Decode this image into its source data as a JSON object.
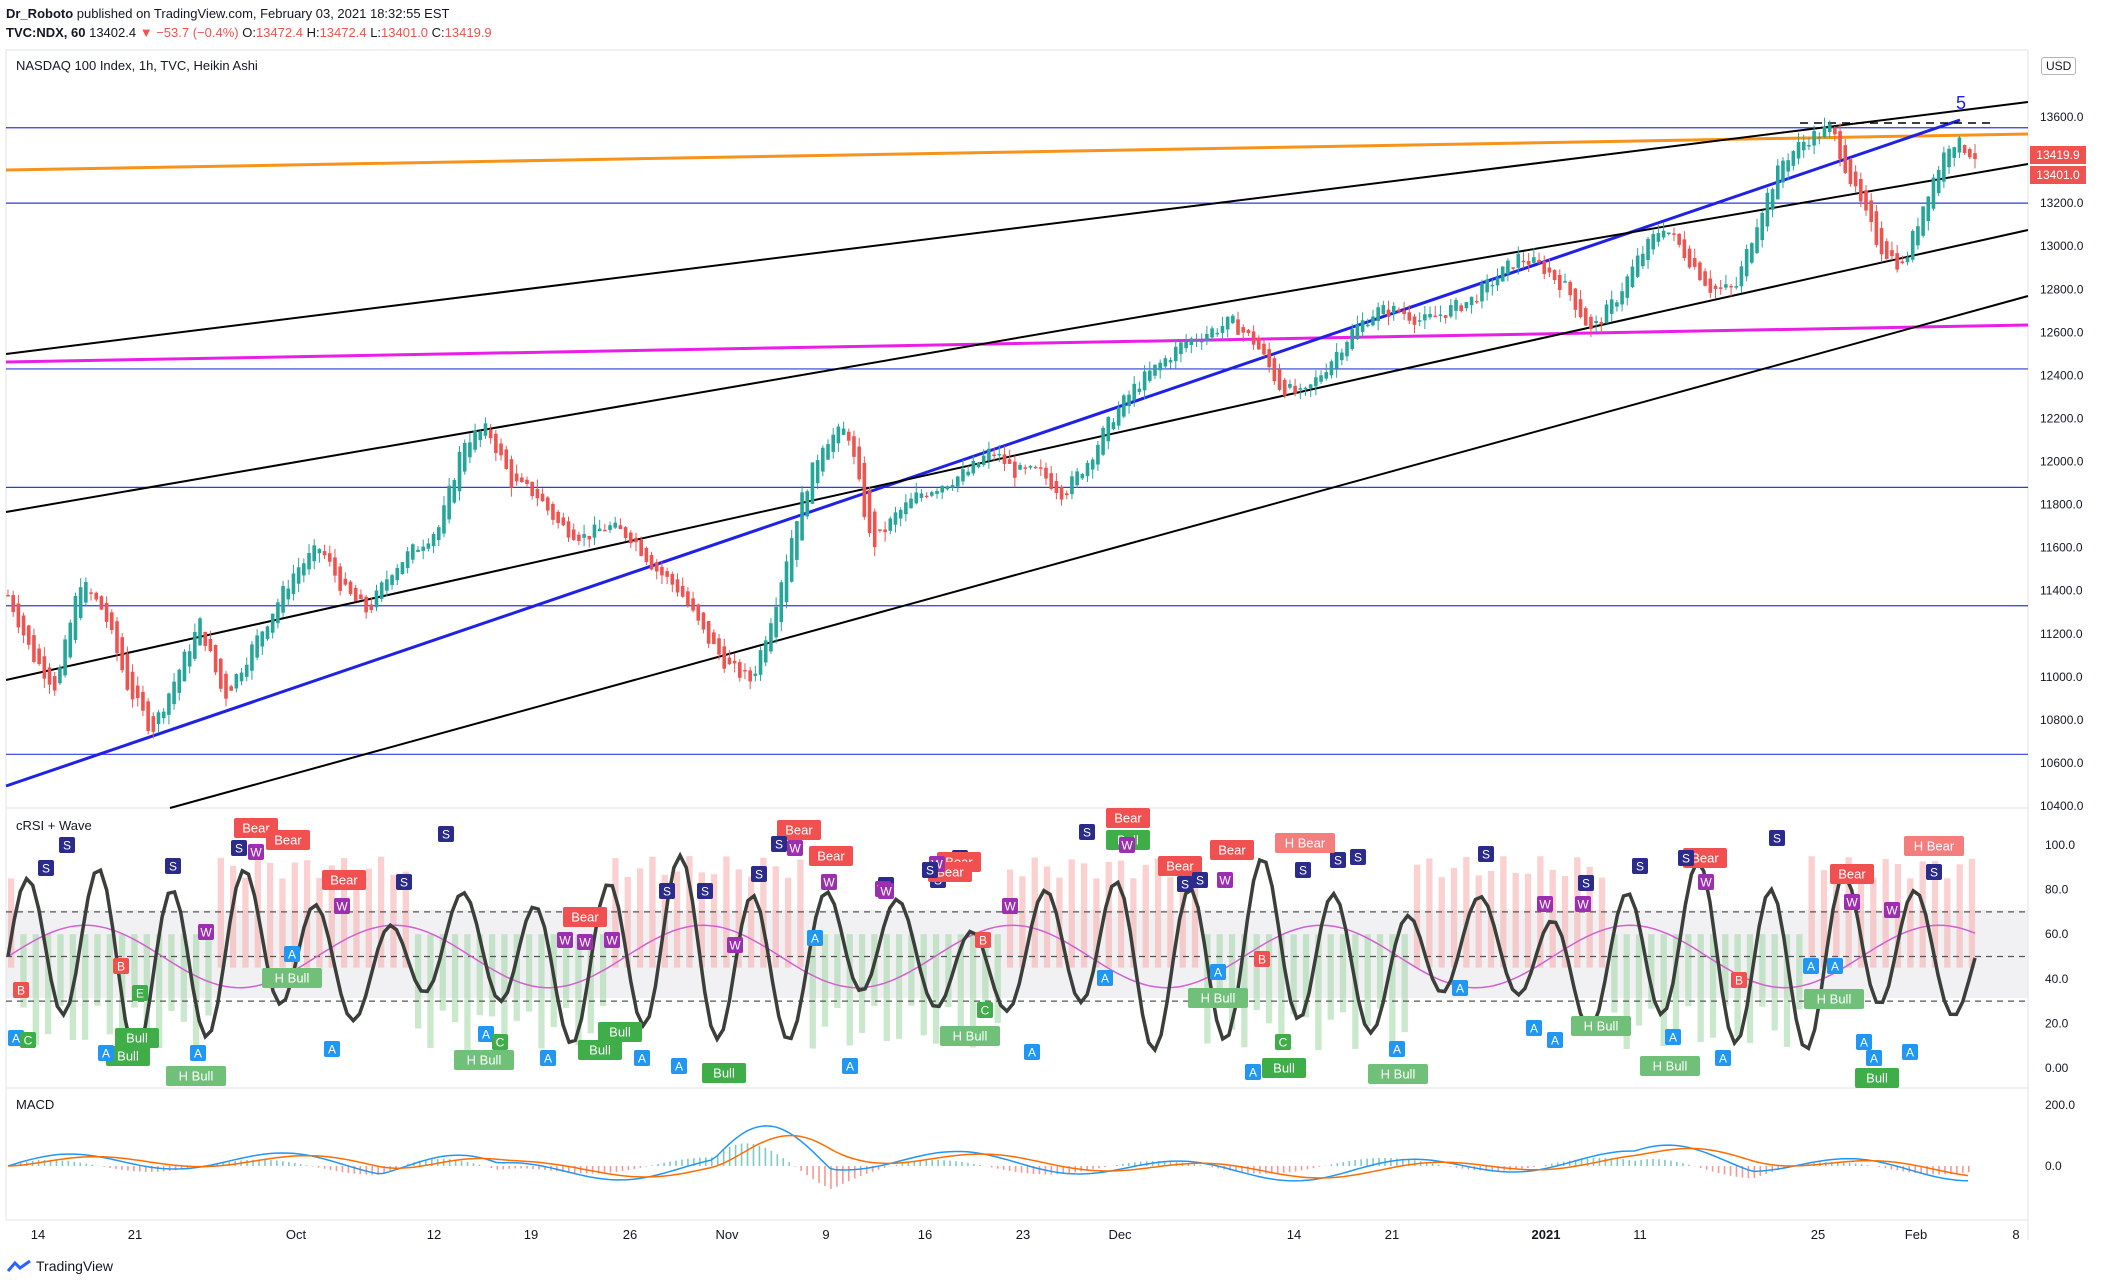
{
  "header": {
    "publisher": "Dr_Roboto",
    "published_text": "published on TradingView.com, February 03, 2021 18:32:55 EST",
    "symbol": "TVC:NDX, 60",
    "last": "13402.4",
    "change": "▼ −53.7 (−0.4%)",
    "o_label": "O:",
    "o": "13472.4",
    "h_label": "H:",
    "h": "13472.4",
    "l_label": "L:",
    "l": "13401.0",
    "c_label": "C:",
    "c": "13419.9"
  },
  "main_title": "NASDAQ 100 Index, 1h, TVC, Heikin Ashi",
  "currency": "USD",
  "price_tags": [
    "13419.9",
    "13401.0"
  ],
  "wave_label": "5",
  "crsi_title": "cRSI + Wave",
  "macd_title": "MACD",
  "footer": {
    "brand": "TradingView"
  },
  "colors": {
    "up": "#26a69a",
    "down": "#ef5350",
    "hline": "#2f3bdc",
    "orange": "#f7931a",
    "magenta": "#e91ee8",
    "blue_trend": "#1f22e6"
  },
  "chart_data": [
    {
      "type": "line",
      "title": "NASDAQ 100 Index, 1h, TVC, Heikin Ashi",
      "ylim": [
        10400,
        13700
      ],
      "y_ticks": [
        "13600.0",
        "13400.0",
        "13200.0",
        "13000.0",
        "12800.0",
        "12600.0",
        "12400.0",
        "12200.0",
        "12000.0",
        "11800.0",
        "11600.0",
        "11400.0",
        "11200.0",
        "11000.0",
        "10800.0",
        "10600.0",
        "10400.0"
      ],
      "x_ticks": [
        "14",
        "21",
        "Oct",
        "12",
        "19",
        "26",
        "Nov",
        "9",
        "16",
        "23",
        "Dec",
        "14",
        "21",
        "2021",
        "11",
        "25",
        "Feb",
        "8"
      ],
      "series": [
        {
          "values": [
            11380,
            11100,
            10950,
            11450,
            11300,
            10950,
            10750,
            11000,
            11250,
            10900,
            11100,
            11300,
            11500,
            11600,
            11400,
            11300,
            11500,
            11600,
            11700,
            12100,
            12150,
            11900,
            11850,
            11700,
            11650,
            11700,
            11650,
            11500,
            11400,
            11200,
            11050,
            10980,
            11350,
            11800,
            12100,
            12150,
            11600,
            11750,
            11850,
            11900,
            11950,
            12050,
            11950,
            11950,
            11850,
            12000,
            12200,
            12350,
            12450,
            12550,
            12600,
            12650,
            12550,
            12350,
            12300,
            12450,
            12600,
            12700,
            12700,
            12650,
            12700,
            12750,
            12850,
            12950,
            12900,
            12800,
            12600,
            12750,
            12950,
            13100,
            12950,
            12800,
            12800,
            13150,
            13400,
            13500,
            13550,
            13250,
            13000,
            12900,
            13250,
            13500,
            13420
          ]
        }
      ],
      "horizontal_levels": [
        13550,
        13200,
        12430,
        11880,
        11330,
        10640
      ],
      "annotations": [
        "5"
      ]
    },
    {
      "type": "line",
      "title": "cRSI + Wave",
      "ylim": [
        0,
        100
      ],
      "y_ticks": [
        "100.0",
        "80.0",
        "60.0",
        "40.0",
        "20.0",
        "0.00"
      ],
      "dashed_levels": [
        70,
        50,
        30
      ],
      "signal_labels": [
        "Bear",
        "H Bear",
        "Bull",
        "H Bull",
        "S",
        "W",
        "A",
        "B",
        "C",
        "E"
      ]
    },
    {
      "type": "line",
      "title": "MACD",
      "y_ticks": [
        "200.0",
        "0.0"
      ]
    }
  ]
}
